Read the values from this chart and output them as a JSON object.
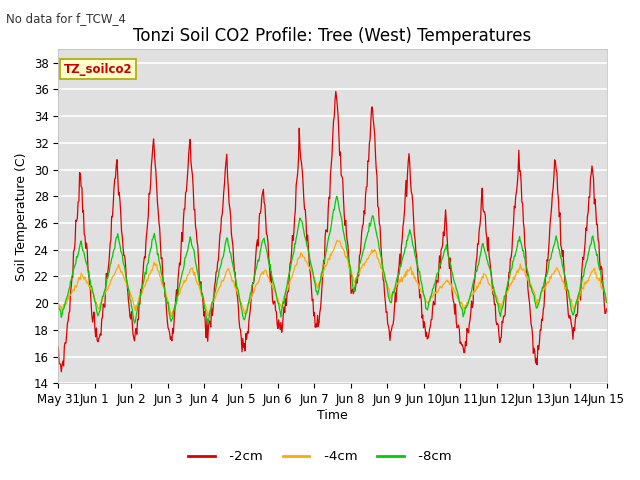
{
  "title": "Tonzi Soil CO2 Profile: Tree (West) Temperatures",
  "subtitle": "No data for f_TCW_4",
  "ylabel": "Soil Temperature (C)",
  "xlabel": "Time",
  "ylim": [
    14,
    39
  ],
  "yticks": [
    14,
    16,
    18,
    20,
    22,
    24,
    26,
    28,
    30,
    32,
    34,
    36,
    38
  ],
  "bg_color": "#e0e0e0",
  "fig_color": "#ffffff",
  "legend_label": "TZ_soilco2",
  "legend_box_color": "#ffffcc",
  "legend_box_border": "#aaaa00",
  "line_colors": {
    "-2cm": "#dd0000",
    "-4cm": "#ffaa00",
    "-8cm": "#00cc00"
  },
  "xtick_labels": [
    "May 31",
    "Jun 1",
    "Jun 2",
    "Jun 3",
    "Jun 4",
    "Jun 5",
    "Jun 6",
    "Jun 7",
    "Jun 8",
    "Jun 9",
    "Jun 10",
    "Jun 11",
    "Jun 12",
    "Jun 13",
    "Jun 14",
    "Jun 15"
  ],
  "title_fontsize": 12,
  "axis_label_fontsize": 9,
  "tick_fontsize": 8.5
}
